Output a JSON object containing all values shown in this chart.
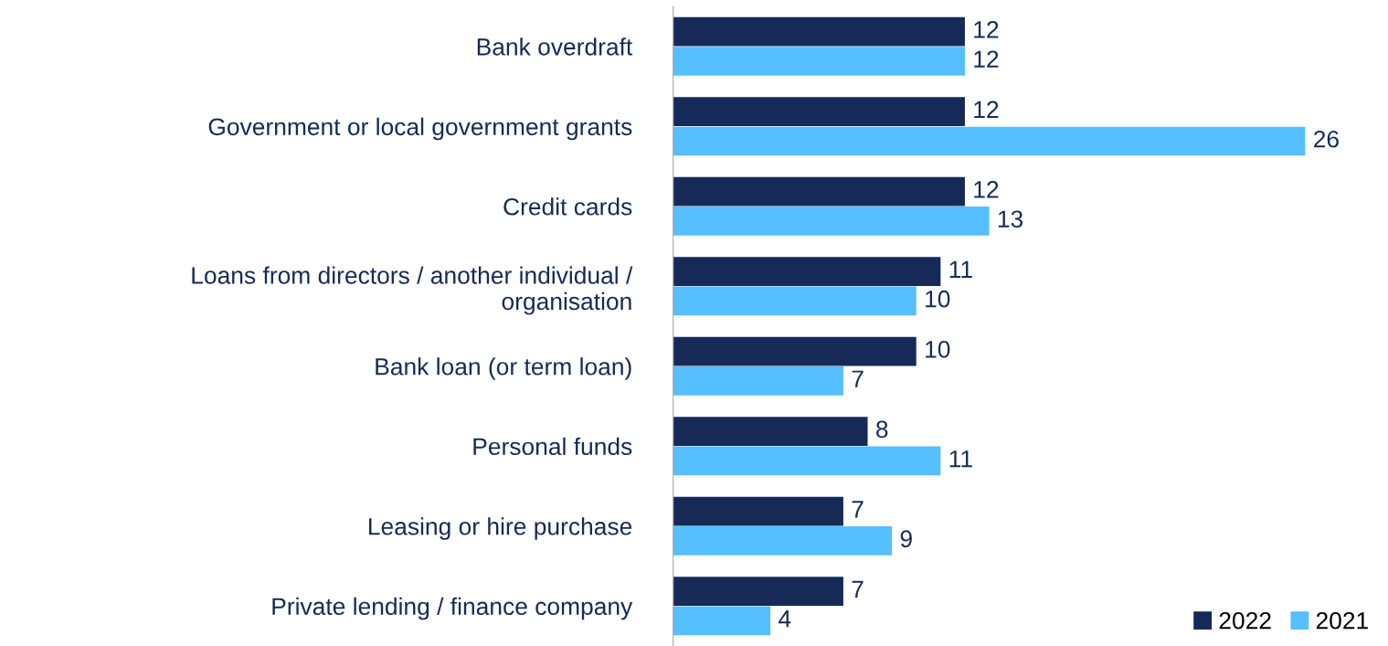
{
  "chart_data": {
    "type": "bar",
    "orientation": "horizontal",
    "categories": [
      "Bank overdraft",
      "Government or local government grants",
      "Credit cards",
      "Loans from directors / another individual /\norganisation",
      "Bank loan (or term loan)",
      "Personal funds",
      "Leasing or hire purchase",
      "Private lending / finance company"
    ],
    "series": [
      {
        "name": "2022",
        "color": "#172a57",
        "values": [
          12,
          12,
          12,
          11,
          10,
          8,
          7,
          7
        ]
      },
      {
        "name": "2021",
        "color": "#55bfff",
        "values": [
          12,
          26,
          13,
          10,
          7,
          11,
          9,
          4
        ]
      }
    ],
    "data_labels": true,
    "legend": "bottom right",
    "tick_labels": "y",
    "grid": false
  }
}
